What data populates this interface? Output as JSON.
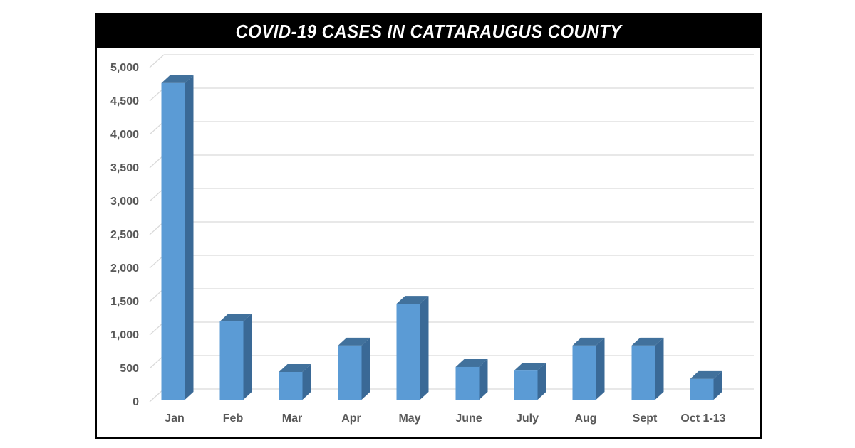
{
  "chart_data": {
    "type": "bar",
    "title": "COVID-19 CASES IN CATTARAUGUS COUNTY",
    "xlabel": "",
    "ylabel": "",
    "categories": [
      "Jan",
      "Feb",
      "Mar",
      "Apr",
      "May",
      "June",
      "July",
      "Aug",
      "Sept",
      "Oct 1-13"
    ],
    "values": [
      4735,
      1170,
      415,
      810,
      1435,
      490,
      435,
      810,
      810,
      310
    ],
    "ylim": [
      0,
      5000
    ],
    "yticks": [
      0,
      500,
      1000,
      1500,
      2000,
      2500,
      3000,
      3500,
      4000,
      4500,
      5000
    ],
    "ytick_labels": [
      "0",
      "500",
      "1,000",
      "1,500",
      "2,000",
      "2,500",
      "3,000",
      "3,500",
      "4,000",
      "4,500",
      "5,000"
    ],
    "grid": true,
    "legend": null,
    "style": "3d-column"
  },
  "colors": {
    "bar_front": "#5b9bd5",
    "bar_side": "#3a6996",
    "bar_top": "#41719c",
    "grid": "#d9d9d9",
    "axis_text": "#595959",
    "title_bg": "#000000",
    "title_text": "#ffffff"
  }
}
